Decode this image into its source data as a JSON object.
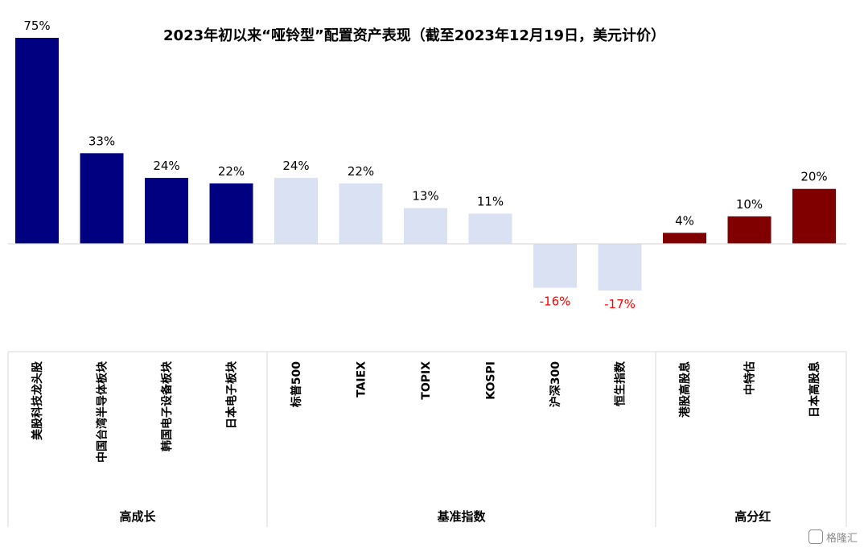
{
  "chart_data": {
    "type": "bar",
    "title": "2023年初以来“哑铃型”配置资产表现（截至2023年12月19日，美元计价）",
    "xlabel": "",
    "ylabel": "",
    "ylim": [
      -17,
      75
    ],
    "grid": false,
    "legend": "none",
    "categories": [
      "美股科技龙头股",
      "中国台湾半导体板块",
      "韩国电子设备板块",
      "日本电子板块",
      "标普500",
      "TAIEX",
      "TOPIX",
      "KOSPI",
      "沪深300",
      "恒生指数",
      "港股高股息",
      "中特估",
      "日本高股息"
    ],
    "values": [
      75,
      33,
      24,
      22,
      24,
      22,
      13,
      11,
      -16,
      -17,
      4,
      10,
      20
    ],
    "data_labels": [
      "75%",
      "33%",
      "24%",
      "22%",
      "24%",
      "22%",
      "13%",
      "11%",
      "-16%",
      "-17%",
      "4%",
      "10%",
      "20%"
    ],
    "bar_groups": [
      "growth",
      "growth",
      "growth",
      "growth",
      "benchmark",
      "benchmark",
      "benchmark",
      "benchmark",
      "benchmark",
      "benchmark",
      "dividend",
      "dividend",
      "dividend"
    ],
    "groups": [
      {
        "key": "growth",
        "label": "高成长",
        "count": 4,
        "color": "#000080"
      },
      {
        "key": "benchmark",
        "label": "基准指数",
        "count": 6,
        "color": "#D9E1F2"
      },
      {
        "key": "dividend",
        "label": "高分红",
        "count": 3,
        "color": "#800000"
      }
    ],
    "label_colors": {
      "positive": "#000000",
      "negative": "#FF0000"
    }
  },
  "watermark": {
    "text": "格隆汇"
  }
}
